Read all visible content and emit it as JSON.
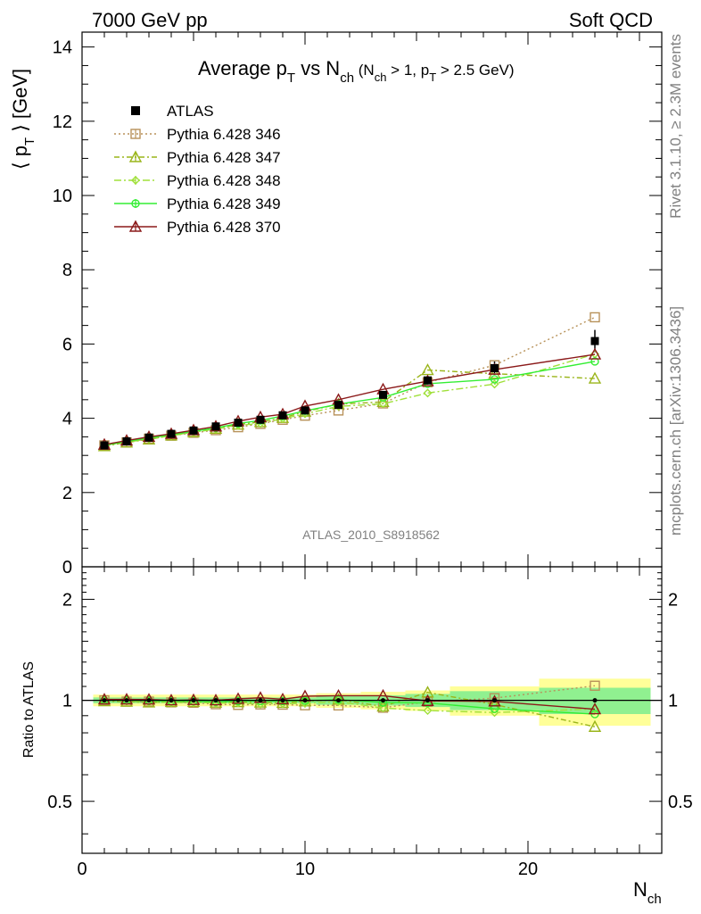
{
  "header": {
    "left": "7000 GeV pp",
    "right": "Soft QCD"
  },
  "side_labels": {
    "rivet": "Rivet 3.1.10, ≥ 2.3M events",
    "mcplots": "mcplots.cern.ch [arXiv:1306.3436]"
  },
  "chart_data": {
    "type": "line",
    "title": {
      "main_a": "Average p",
      "main_a_sub": "T",
      "main_b": " vs N",
      "main_b_sub": "ch",
      "cond_a": " (N",
      "cond_a_sub": "ch",
      "cond_b": " > 1, p",
      "cond_b_sub": "T",
      "cond_c": " > 2.5 GeV)"
    },
    "ylabel": {
      "open": "⟨ p",
      "sub": "T",
      "close": " ⟩ [GeV]"
    },
    "xlabel": {
      "main": "N",
      "sub": "ch"
    },
    "ratio_ylabel": "Ratio to ATLAS",
    "analysis_label": "ATLAS_2010_S8918562",
    "xlim": [
      0,
      26
    ],
    "ylim": [
      0,
      14.4
    ],
    "ratio_ylim": [
      0.35,
      2.5
    ],
    "ratio_log_scale": true,
    "x_ticks": [
      "0",
      "10",
      "20"
    ],
    "y_ticks": [
      "0",
      "2",
      "4",
      "6",
      "8",
      "10",
      "12",
      "14"
    ],
    "ratio_ticks": [
      "0.5",
      "1",
      "2"
    ],
    "legend_position": "top-left",
    "x": [
      1,
      2,
      3,
      4,
      5,
      6,
      7,
      8,
      9,
      10,
      11.5,
      13.5,
      15.5,
      18.5,
      23
    ],
    "x_bins": [
      [
        0.5,
        1.5
      ],
      [
        1.5,
        2.5
      ],
      [
        2.5,
        3.5
      ],
      [
        3.5,
        4.5
      ],
      [
        4.5,
        5.5
      ],
      [
        5.5,
        6.5
      ],
      [
        6.5,
        7.5
      ],
      [
        7.5,
        8.5
      ],
      [
        8.5,
        9.5
      ],
      [
        9.5,
        10.5
      ],
      [
        10.5,
        12.5
      ],
      [
        12.5,
        14.5
      ],
      [
        14.5,
        16.5
      ],
      [
        16.5,
        20.5
      ],
      [
        20.5,
        25.5
      ]
    ],
    "data_series": {
      "name": "ATLAS",
      "color": "#000000",
      "values": [
        3.27,
        3.38,
        3.48,
        3.58,
        3.67,
        3.78,
        3.88,
        3.96,
        4.08,
        4.21,
        4.36,
        4.63,
        5.02,
        5.35,
        6.08
      ],
      "errors": [
        0.02,
        0.02,
        0.02,
        0.02,
        0.03,
        0.03,
        0.03,
        0.04,
        0.04,
        0.05,
        0.06,
        0.08,
        0.11,
        0.18,
        0.3
      ],
      "ratio_band_yellow": [
        0.04,
        0.04,
        0.04,
        0.04,
        0.04,
        0.04,
        0.04,
        0.04,
        0.04,
        0.04,
        0.05,
        0.06,
        0.07,
        0.1,
        0.16
      ],
      "ratio_band_green": [
        0.02,
        0.02,
        0.02,
        0.02,
        0.02,
        0.02,
        0.02,
        0.02,
        0.02,
        0.02,
        0.03,
        0.035,
        0.045,
        0.065,
        0.09
      ]
    },
    "series": [
      {
        "name": "Pythia 6.428 346",
        "color": "#b8925a",
        "dash": "2,3",
        "marker": "square",
        "values": [
          3.27,
          3.35,
          3.45,
          3.53,
          3.61,
          3.68,
          3.76,
          3.85,
          3.96,
          4.07,
          4.21,
          4.4,
          4.97,
          5.43,
          6.72
        ]
      },
      {
        "name": "Pythia 6.428 347",
        "color": "#9ab51a",
        "dash": "6,3,2,3",
        "marker": "triangle",
        "values": [
          3.25,
          3.35,
          3.43,
          3.54,
          3.63,
          3.72,
          3.83,
          3.9,
          4.01,
          4.18,
          4.38,
          4.44,
          5.3,
          5.2,
          5.07
        ]
      },
      {
        "name": "Pythia 6.428 348",
        "color": "#a0e03a",
        "dash": "8,3,2,3",
        "marker": "diamond",
        "values": [
          3.27,
          3.36,
          3.44,
          3.53,
          3.62,
          3.71,
          3.81,
          3.86,
          3.99,
          4.12,
          4.32,
          4.39,
          4.68,
          4.92,
          5.73
        ]
      },
      {
        "name": "Pythia 6.428 349",
        "color": "#33ee33",
        "dash": "",
        "marker": "circle",
        "values": [
          3.27,
          3.38,
          3.47,
          3.56,
          3.65,
          3.74,
          3.86,
          3.94,
          4.06,
          4.2,
          4.38,
          4.56,
          4.93,
          5.05,
          5.53
        ]
      },
      {
        "name": "Pythia 6.428 370",
        "color": "#8b1a1a",
        "dash": "",
        "marker": "triangle",
        "values": [
          3.29,
          3.4,
          3.5,
          3.58,
          3.68,
          3.78,
          3.92,
          4.03,
          4.11,
          4.33,
          4.5,
          4.78,
          5.0,
          5.31,
          5.72
        ]
      }
    ]
  }
}
